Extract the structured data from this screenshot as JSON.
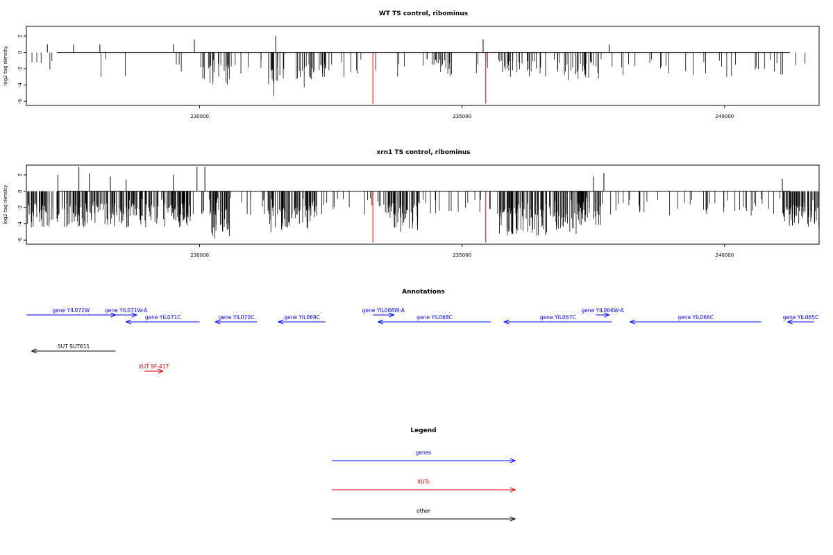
{
  "figure": {
    "annotations_title": "Annotations",
    "legend_title": "Legend"
  },
  "colors": {
    "black": "#000000",
    "red": "#e00000",
    "blue": "#0000ff"
  },
  "chart_data": [
    {
      "type": "bar",
      "title": "WT TS control, ribominus",
      "ylabel": "log2 tag density",
      "xlim": [
        226700,
        241800
      ],
      "ylim": [
        -6.5,
        3.2
      ],
      "x_ticks": [
        230000,
        235000,
        240000
      ],
      "y_ticks": [
        -6,
        -4,
        -2,
        0,
        2
      ],
      "grid": false,
      "density": 1.0,
      "seed": 11,
      "clusters": [
        {
          "from": 230000,
          "to": 230700,
          "neg": [
            -1.5,
            -4.2
          ]
        },
        {
          "from": 231300,
          "to": 231700,
          "neg": [
            -1.8,
            -5.3
          ]
        },
        {
          "from": 231800,
          "to": 232400,
          "neg": [
            -1.5,
            -4.4
          ]
        },
        {
          "from": 234300,
          "to": 234800,
          "neg": [
            -0.8,
            -2.6
          ]
        },
        {
          "from": 235700,
          "to": 236500,
          "neg": [
            -1.0,
            -3.0
          ]
        },
        {
          "from": 236800,
          "to": 237600,
          "neg": [
            -1.0,
            -3.4
          ]
        }
      ],
      "highlight_x": [
        233300,
        235450
      ],
      "highlight_value": -6.3,
      "positive_x": [
        227100,
        227600,
        228100,
        229500,
        229900,
        231450,
        235400,
        237800
      ],
      "positive_values": [
        1.0,
        1.0,
        1.0,
        1.0,
        1.6,
        2.0,
        1.6,
        1.0
      ]
    },
    {
      "type": "bar",
      "title": "xrn1 TS control, ribominus",
      "ylabel": "log2 tag density",
      "xlim": [
        226700,
        241800
      ],
      "ylim": [
        -6.5,
        3.2
      ],
      "x_ticks": [
        230000,
        235000,
        240000
      ],
      "y_ticks": [
        -6,
        -4,
        -2,
        0,
        2
      ],
      "grid": false,
      "density": 2.2,
      "seed": 29,
      "clusters": [
        {
          "from": 226700,
          "to": 229900,
          "neg": [
            -1.5,
            -4.5
          ]
        },
        {
          "from": 230200,
          "to": 230600,
          "neg": [
            -2.2,
            -5.8
          ]
        },
        {
          "from": 231300,
          "to": 231800,
          "neg": [
            -2.0,
            -5.2
          ]
        },
        {
          "from": 231800,
          "to": 232200,
          "neg": [
            -1.8,
            -4.8
          ]
        },
        {
          "from": 233500,
          "to": 234200,
          "neg": [
            -1.5,
            -5.0
          ]
        },
        {
          "from": 235700,
          "to": 237200,
          "neg": [
            -2.0,
            -5.5
          ]
        },
        {
          "from": 237200,
          "to": 237700,
          "neg": [
            -1.5,
            -4.5
          ]
        },
        {
          "from": 241100,
          "to": 241800,
          "neg": [
            -1.8,
            -4.5
          ]
        }
      ],
      "highlight_x": [
        233300,
        235450
      ],
      "highlight_value": -6.3,
      "positive_x": [
        227300,
        227700,
        227900,
        228300,
        228600,
        229500,
        229950,
        230100,
        237500,
        237700,
        241100
      ],
      "positive_values": [
        2.0,
        3.0,
        2.2,
        1.8,
        1.4,
        2.0,
        3.0,
        3.0,
        1.8,
        2.2,
        1.5
      ]
    }
  ],
  "annotations": [
    {
      "label": "gene YIL072W",
      "from": 226700,
      "to": 228400,
      "row": 0,
      "color": "blue",
      "dir": "right"
    },
    {
      "label": "gene YIL071W-A",
      "from": 228400,
      "to": 228800,
      "row": 0,
      "color": "blue",
      "dir": "right"
    },
    {
      "label": "gene YIL071C",
      "from": 228600,
      "to": 230000,
      "row": 1,
      "color": "blue",
      "dir": "left"
    },
    {
      "label": "gene YIL070C",
      "from": 230300,
      "to": 231100,
      "row": 1,
      "color": "blue",
      "dir": "left"
    },
    {
      "label": "gene YIL069C",
      "from": 231500,
      "to": 232400,
      "row": 1,
      "color": "blue",
      "dir": "left"
    },
    {
      "label": "gene YIL068W-A",
      "from": 233300,
      "to": 233700,
      "row": 0,
      "color": "blue",
      "dir": "right"
    },
    {
      "label": "gene YIL068C",
      "from": 233400,
      "to": 235550,
      "row": 1,
      "color": "blue",
      "dir": "left"
    },
    {
      "label": "gene YIL067C",
      "from": 235800,
      "to": 237850,
      "row": 1,
      "color": "blue",
      "dir": "left"
    },
    {
      "label": "gene YIL066W-A",
      "from": 237550,
      "to": 237800,
      "row": 0,
      "color": "blue",
      "dir": "right"
    },
    {
      "label": "gene YIL066C",
      "from": 238200,
      "to": 240700,
      "row": 1,
      "color": "blue",
      "dir": "left"
    },
    {
      "label": "gene YIL065C",
      "from": 241200,
      "to": 241700,
      "row": 1,
      "color": "blue",
      "dir": "left"
    },
    {
      "label": "SUT SUT611",
      "from": 226800,
      "to": 228400,
      "row": 2,
      "color": "black",
      "dir": "left"
    },
    {
      "label": "XUT 9F-417",
      "from": 228950,
      "to": 229300,
      "row": 3,
      "color": "red",
      "dir": "right"
    }
  ],
  "legend": [
    {
      "label": "genes",
      "color": "blue"
    },
    {
      "label": "XUTs",
      "color": "red"
    },
    {
      "label": "other",
      "color": "black"
    }
  ]
}
